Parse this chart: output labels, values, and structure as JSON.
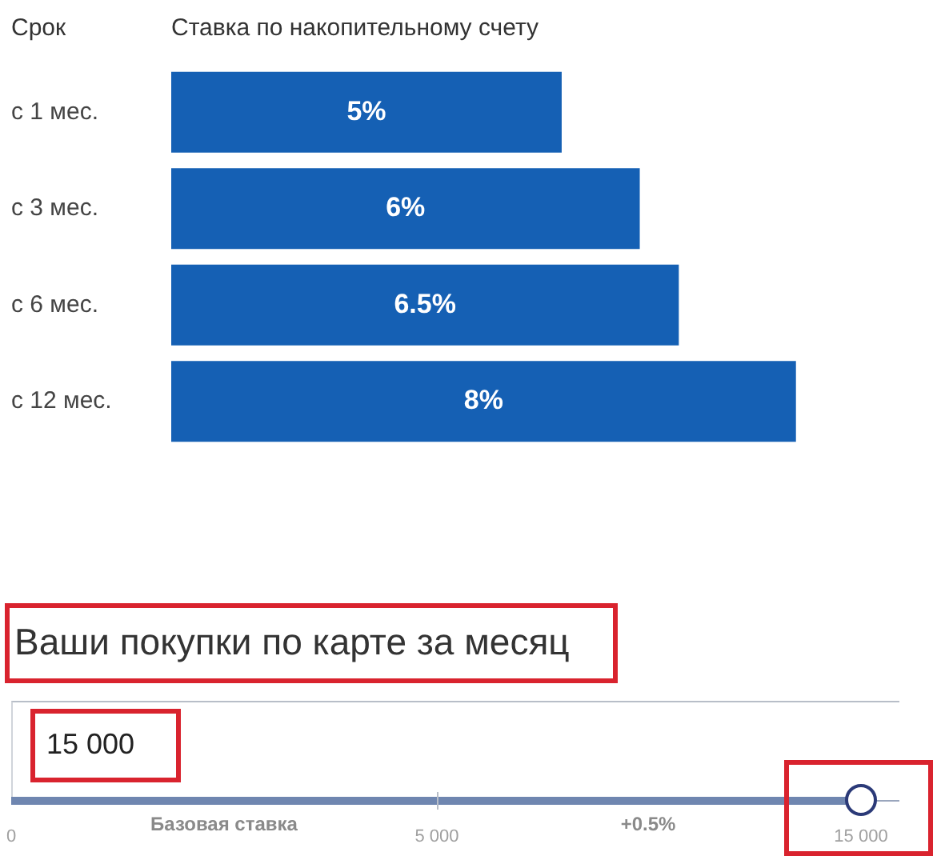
{
  "chart_data": [
    {
      "type": "bar",
      "orientation": "horizontal",
      "title": "Ставка по накопительному счету",
      "ylabel": "Срок",
      "categories": [
        "с 1 мес.",
        "с 3 мес.",
        "с 6 мес.",
        "с 12 мес."
      ],
      "values": [
        5,
        6,
        6.5,
        8
      ],
      "value_labels": [
        "5%",
        "6%",
        "6.5%",
        "8%"
      ],
      "color": "#1560b4"
    },
    {
      "type": "other",
      "title": "Ваши покупки по карте за месяц",
      "annotations": [
        "15 000",
        "Базовая ставка",
        "+0.5%",
        "0",
        "5 000",
        "15 000"
      ]
    }
  ]
}
